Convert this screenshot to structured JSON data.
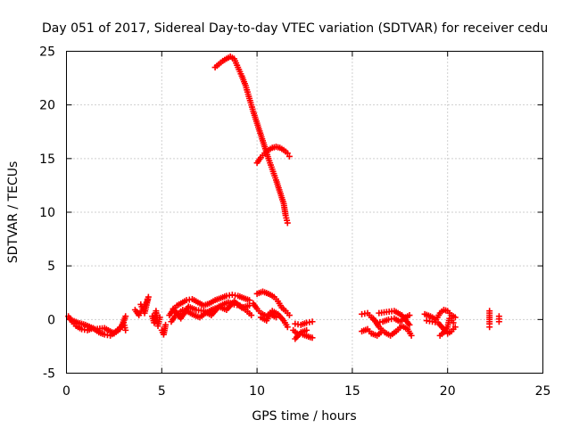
{
  "chart_data": {
    "type": "scatter",
    "title": "Day 051 of 2017, Sidereal Day-to-day VTEC variation (SDTVAR) for receiver cedu",
    "xlabel": "GPS time / hours",
    "ylabel": "SDTVAR / TECUs",
    "xlim": [
      0,
      25
    ],
    "ylim": [
      -5,
      25
    ],
    "xticks": [
      0,
      5,
      10,
      15,
      20,
      25
    ],
    "yticks": [
      -5,
      0,
      5,
      10,
      15,
      20,
      25
    ],
    "grid": true,
    "marker": "+",
    "color": "#ff0000",
    "series": [
      {
        "name": "SDTVAR",
        "segments": [
          [
            [
              0.1,
              0.3
            ],
            [
              0.3,
              -0.2
            ],
            [
              0.5,
              -0.6
            ],
            [
              0.8,
              -0.9
            ],
            [
              1.1,
              -1.0
            ],
            [
              1.4,
              -0.8
            ],
            [
              1.7,
              -1.2
            ],
            [
              2.0,
              -1.4
            ],
            [
              2.3,
              -1.5
            ],
            [
              2.6,
              -1.1
            ],
            [
              2.9,
              -0.6
            ],
            [
              3.1,
              0.3
            ]
          ],
          [
            [
              0.2,
              0.0
            ],
            [
              0.6,
              -0.3
            ],
            [
              1.0,
              -0.5
            ],
            [
              1.5,
              -0.9
            ],
            [
              2.0,
              -0.8
            ],
            [
              2.5,
              -1.3
            ],
            [
              2.8,
              -0.9
            ],
            [
              3.0,
              -0.3
            ],
            [
              3.1,
              -1.0
            ]
          ],
          [
            [
              3.6,
              0.9
            ],
            [
              3.8,
              0.4
            ],
            [
              4.0,
              1.0
            ],
            [
              4.2,
              1.6
            ],
            [
              4.3,
              2.1
            ],
            [
              4.1,
              0.6
            ],
            [
              3.9,
              1.4
            ]
          ],
          [
            [
              4.5,
              0.3
            ],
            [
              4.6,
              -0.3
            ],
            [
              4.7,
              0.8
            ],
            [
              4.8,
              -0.6
            ],
            [
              4.9,
              0.2
            ]
          ],
          [
            [
              5.0,
              -1.0
            ],
            [
              5.1,
              -1.4
            ],
            [
              5.2,
              -0.5
            ]
          ],
          [
            [
              5.4,
              0.4
            ],
            [
              5.6,
              0.9
            ],
            [
              5.8,
              1.3
            ],
            [
              6.0,
              1.5
            ],
            [
              6.3,
              1.8
            ],
            [
              6.6,
              1.9
            ],
            [
              6.9,
              1.6
            ],
            [
              7.2,
              1.3
            ],
            [
              7.5,
              1.5
            ],
            [
              7.8,
              1.8
            ],
            [
              8.1,
              2.0
            ],
            [
              8.4,
              2.2
            ],
            [
              8.7,
              2.3
            ],
            [
              9.0,
              2.2
            ],
            [
              9.3,
              2.0
            ],
            [
              9.6,
              1.8
            ]
          ],
          [
            [
              5.5,
              -0.2
            ],
            [
              5.7,
              0.3
            ],
            [
              5.9,
              0.6
            ],
            [
              6.1,
              0.9
            ],
            [
              6.4,
              0.7
            ],
            [
              6.7,
              0.4
            ],
            [
              7.0,
              0.2
            ],
            [
              7.3,
              0.6
            ],
            [
              7.6,
              0.9
            ],
            [
              7.9,
              1.1
            ],
            [
              8.2,
              1.4
            ],
            [
              8.5,
              1.6
            ],
            [
              8.8,
              1.4
            ],
            [
              9.1,
              1.3
            ],
            [
              9.4,
              0.9
            ],
            [
              9.7,
              0.4
            ]
          ],
          [
            [
              5.6,
              1.0
            ],
            [
              6.0,
              0.1
            ],
            [
              6.4,
              1.2
            ],
            [
              6.8,
              0.9
            ],
            [
              7.2,
              0.8
            ],
            [
              7.6,
              0.4
            ],
            [
              8.0,
              1.2
            ],
            [
              8.4,
              0.9
            ],
            [
              8.8,
              1.7
            ],
            [
              9.2,
              1.1
            ],
            [
              9.6,
              1.3
            ]
          ],
          [
            [
              9.8,
              1.5
            ],
            [
              10.0,
              1.0
            ],
            [
              10.2,
              0.6
            ],
            [
              10.5,
              0.3
            ],
            [
              10.8,
              0.8
            ],
            [
              11.1,
              0.5
            ],
            [
              11.4,
              -0.1
            ],
            [
              11.6,
              -0.7
            ]
          ],
          [
            [
              10.0,
              2.4
            ],
            [
              10.3,
              2.6
            ],
            [
              10.6,
              2.4
            ],
            [
              10.9,
              2.1
            ],
            [
              11.1,
              1.7
            ],
            [
              11.3,
              1.1
            ],
            [
              11.5,
              0.8
            ],
            [
              11.7,
              0.4
            ]
          ],
          [
            [
              10.2,
              0.2
            ],
            [
              10.5,
              -0.1
            ],
            [
              10.7,
              0.5
            ],
            [
              11.0,
              0.2
            ]
          ],
          [
            [
              12.0,
              -0.4
            ],
            [
              12.3,
              -0.5
            ],
            [
              12.6,
              -0.3
            ],
            [
              12.9,
              -0.2
            ]
          ],
          [
            [
              11.9,
              -1.0
            ],
            [
              12.1,
              -1.3
            ],
            [
              12.4,
              -1.4
            ],
            [
              12.7,
              -1.6
            ],
            [
              12.9,
              -1.7
            ]
          ],
          [
            [
              12.0,
              -1.8
            ],
            [
              12.3,
              -1.2
            ],
            [
              12.6,
              -1.0
            ]
          ],
          [
            [
              15.5,
              0.5
            ],
            [
              15.8,
              0.6
            ],
            [
              16.0,
              0.2
            ],
            [
              16.3,
              -0.3
            ],
            [
              16.6,
              -0.2
            ],
            [
              16.9,
              0.0
            ],
            [
              17.2,
              0.1
            ],
            [
              17.5,
              -0.2
            ],
            [
              17.8,
              0.2
            ],
            [
              18.0,
              0.4
            ]
          ],
          [
            [
              15.5,
              -1.1
            ],
            [
              15.8,
              -0.9
            ],
            [
              16.0,
              -1.3
            ],
            [
              16.3,
              -1.5
            ],
            [
              16.5,
              -1.2
            ]
          ],
          [
            [
              16.1,
              0.1
            ],
            [
              16.4,
              -0.7
            ],
            [
              16.7,
              -1.2
            ],
            [
              17.0,
              -1.5
            ],
            [
              17.3,
              -1.1
            ],
            [
              17.6,
              -0.6
            ],
            [
              17.9,
              -0.9
            ],
            [
              18.1,
              -1.5
            ]
          ],
          [
            [
              16.4,
              0.6
            ],
            [
              16.8,
              0.7
            ],
            [
              17.2,
              0.8
            ],
            [
              17.6,
              0.4
            ],
            [
              18.0,
              -0.5
            ]
          ],
          [
            [
              18.8,
              0.5
            ],
            [
              19.1,
              0.3
            ],
            [
              19.4,
              0.0
            ],
            [
              19.6,
              0.6
            ],
            [
              19.8,
              0.9
            ],
            [
              20.0,
              0.8
            ],
            [
              20.2,
              0.4
            ],
            [
              20.4,
              0.2
            ]
          ],
          [
            [
              18.9,
              -0.1
            ],
            [
              19.2,
              -0.2
            ],
            [
              19.5,
              -0.3
            ],
            [
              19.8,
              -0.9
            ],
            [
              20.0,
              -1.3
            ],
            [
              20.2,
              -1.1
            ],
            [
              20.4,
              -0.7
            ]
          ],
          [
            [
              19.6,
              -1.5
            ],
            [
              19.8,
              -1.2
            ],
            [
              20.0,
              -0.7
            ],
            [
              20.1,
              0.1
            ],
            [
              20.3,
              -0.3
            ]
          ],
          [
            [
              22.2,
              0.8
            ],
            [
              22.2,
              0.4
            ],
            [
              22.2,
              -0.4
            ],
            [
              22.2,
              -0.7
            ]
          ],
          [
            [
              22.7,
              0.3
            ],
            [
              22.7,
              -0.2
            ]
          ],
          [
            [
              7.8,
              23.5
            ],
            [
              8.0,
              23.8
            ],
            [
              8.2,
              24.1
            ],
            [
              8.4,
              24.3
            ],
            [
              8.6,
              24.5
            ],
            [
              8.8,
              24.3
            ],
            [
              9.0,
              23.5
            ],
            [
              9.2,
              22.7
            ],
            [
              9.4,
              21.8
            ],
            [
              9.6,
              20.6
            ],
            [
              9.8,
              19.4
            ],
            [
              10.0,
              18.3
            ],
            [
              10.2,
              17.2
            ],
            [
              10.4,
              16.1
            ],
            [
              10.6,
              15.0
            ],
            [
              10.8,
              14.0
            ],
            [
              11.0,
              13.0
            ],
            [
              11.2,
              11.9
            ],
            [
              11.4,
              10.8
            ],
            [
              11.5,
              9.7
            ],
            [
              11.6,
              9.0
            ]
          ],
          [
            [
              10.0,
              14.6
            ],
            [
              10.2,
              15.1
            ],
            [
              10.4,
              15.5
            ],
            [
              10.6,
              15.8
            ],
            [
              10.8,
              16.0
            ],
            [
              11.0,
              16.1
            ],
            [
              11.2,
              16.0
            ],
            [
              11.4,
              15.8
            ],
            [
              11.6,
              15.5
            ],
            [
              11.7,
              15.2
            ]
          ]
        ]
      }
    ]
  }
}
